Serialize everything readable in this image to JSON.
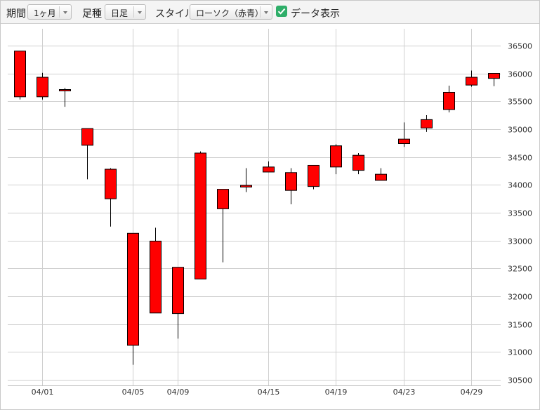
{
  "toolbar": {
    "period_label": "期間",
    "period_value": "1ヶ月",
    "bar_label": "足種",
    "bar_value": "日足",
    "style_label": "スタイル",
    "style_value": "ローソク（赤青）",
    "show_data_label": "データ表示",
    "show_data_checked": true
  },
  "colors": {
    "up": "#ff0000",
    "down": "#0000ff",
    "grid": "#cfcfcf"
  },
  "chart_data": {
    "type": "candlestick",
    "ylim": [
      30400,
      36800
    ],
    "yticks": [
      30500,
      31000,
      31500,
      32000,
      32500,
      33000,
      33500,
      34000,
      34500,
      35000,
      35500,
      36000,
      36500
    ],
    "xticks": [
      {
        "label": "04/01",
        "index": 1
      },
      {
        "label": "04/05",
        "index": 5
      },
      {
        "label": "04/09",
        "index": 7
      },
      {
        "label": "04/15",
        "index": 11
      },
      {
        "label": "04/19",
        "index": 14
      },
      {
        "label": "04/23",
        "index": 17
      },
      {
        "label": "04/29",
        "index": 20
      }
    ],
    "grid": true,
    "candles": [
      {
        "open": 35580,
        "close": 36400,
        "high": 36400,
        "low": 35530
      },
      {
        "open": 35580,
        "close": 35930,
        "high": 36010,
        "low": 35530
      },
      {
        "open": 35690,
        "close": 35710,
        "high": 35740,
        "low": 35400
      },
      {
        "open": 34710,
        "close": 35010,
        "high": 35010,
        "low": 34100
      },
      {
        "open": 33750,
        "close": 34280,
        "high": 34300,
        "low": 33250
      },
      {
        "open": 31120,
        "close": 33130,
        "high": 33130,
        "low": 30770
      },
      {
        "open": 31700,
        "close": 32990,
        "high": 33230,
        "low": 31700
      },
      {
        "open": 31690,
        "close": 32520,
        "high": 32520,
        "low": 31240
      },
      {
        "open": 32310,
        "close": 34570,
        "high": 34600,
        "low": 32310
      },
      {
        "open": 33570,
        "close": 33920,
        "high": 33920,
        "low": 32610
      },
      {
        "open": 33960,
        "close": 33990,
        "high": 34300,
        "low": 33870
      },
      {
        "open": 34230,
        "close": 34320,
        "high": 34420,
        "low": 34230
      },
      {
        "open": 33900,
        "close": 34220,
        "high": 34300,
        "low": 33650
      },
      {
        "open": 33970,
        "close": 34350,
        "high": 34350,
        "low": 33920
      },
      {
        "open": 34320,
        "close": 34700,
        "high": 34730,
        "low": 34190
      },
      {
        "open": 34260,
        "close": 34530,
        "high": 34570,
        "low": 34190
      },
      {
        "open": 34080,
        "close": 34190,
        "high": 34300,
        "low": 34080
      },
      {
        "open": 34740,
        "close": 34820,
        "high": 35120,
        "low": 34680
      },
      {
        "open": 35020,
        "close": 35170,
        "high": 35250,
        "low": 34950
      },
      {
        "open": 35350,
        "close": 35660,
        "high": 35780,
        "low": 35300
      },
      {
        "open": 35790,
        "close": 35930,
        "high": 36050,
        "low": 35760
      },
      {
        "open": 35910,
        "close": 36000,
        "high": 36000,
        "low": 35770
      }
    ]
  }
}
